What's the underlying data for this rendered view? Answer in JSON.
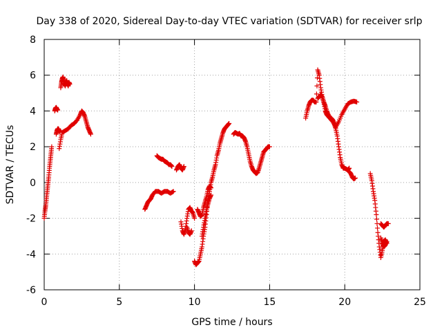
{
  "chart_data": {
    "type": "scatter",
    "title": "Day 338 of 2020, Sidereal Day-to-day VTEC variation (SDTVAR) for receiver srlp",
    "xlabel": "GPS time / hours",
    "ylabel": "SDTVAR / TECUs",
    "xlim": [
      0,
      25
    ],
    "ylim": [
      -6,
      8
    ],
    "xticks": [
      "0",
      "5",
      "10",
      "15",
      "20",
      "25"
    ],
    "yticks": [
      "-6",
      "-4",
      "-2",
      "0",
      "2",
      "4",
      "6",
      "8"
    ],
    "grid": true,
    "marker": "plus",
    "color": "#e00000",
    "segments": [
      {
        "x": [
          0.0,
          0.05,
          0.1,
          0.15,
          0.2,
          0.25,
          0.3,
          0.35,
          0.4,
          0.45,
          0.5
        ],
        "y": [
          -2.0,
          -1.6,
          -1.3,
          -0.9,
          -0.5,
          -0.1,
          0.3,
          0.8,
          1.2,
          1.6,
          2.0
        ]
      },
      {
        "x": [
          0.7,
          0.75,
          0.8,
          0.85,
          0.9
        ],
        "y": [
          4.0,
          4.15,
          4.2,
          4.1,
          4.05
        ]
      },
      {
        "x": [
          0.8,
          0.85,
          0.9,
          0.95,
          1.0,
          1.05
        ],
        "y": [
          2.7,
          2.9,
          3.0,
          3.0,
          2.9,
          2.8
        ]
      },
      {
        "x": [
          1.1,
          1.15,
          1.2,
          1.25,
          1.3,
          1.35,
          1.4,
          1.45,
          1.5,
          1.55,
          1.6,
          1.65,
          1.7
        ],
        "y": [
          5.3,
          5.6,
          5.8,
          5.9,
          5.7,
          5.5,
          5.4,
          5.6,
          5.7,
          5.5,
          5.4,
          5.6,
          5.5
        ]
      },
      {
        "x": [
          1.0,
          1.1,
          1.2,
          1.4,
          1.6,
          1.8,
          2.0,
          2.2,
          2.4,
          2.5,
          2.6,
          2.7,
          2.8,
          2.9,
          3.0,
          3.1
        ],
        "y": [
          1.9,
          2.4,
          2.8,
          2.9,
          3.0,
          3.2,
          3.3,
          3.5,
          3.8,
          4.0,
          3.9,
          3.7,
          3.4,
          3.1,
          2.9,
          2.7
        ]
      },
      {
        "x": [
          6.7,
          6.8,
          6.9,
          7.0,
          7.1,
          7.2,
          7.4,
          7.6,
          7.8,
          8.0,
          8.2,
          8.4,
          8.6
        ],
        "y": [
          -1.5,
          -1.3,
          -1.1,
          -1.0,
          -0.9,
          -0.7,
          -0.5,
          -0.5,
          -0.6,
          -0.5,
          -0.5,
          -0.6,
          -0.5
        ]
      },
      {
        "x": [
          7.5,
          7.6,
          7.7,
          7.8,
          7.9,
          8.0,
          8.1,
          8.2,
          8.3,
          8.4,
          8.5
        ],
        "y": [
          1.5,
          1.4,
          1.35,
          1.3,
          1.3,
          1.2,
          1.15,
          1.1,
          1.0,
          1.0,
          0.9
        ]
      },
      {
        "x": [
          8.8,
          8.9,
          9.0,
          9.1,
          9.2,
          9.3
        ],
        "y": [
          0.7,
          0.9,
          1.0,
          0.8,
          0.7,
          0.9
        ]
      },
      {
        "x": [
          9.1,
          9.2,
          9.3,
          9.4,
          9.5,
          9.6,
          9.7,
          9.8,
          9.9,
          10.0
        ],
        "y": [
          -2.2,
          -2.7,
          -2.9,
          -2.6,
          -2.0,
          -1.5,
          -1.4,
          -1.6,
          -1.7,
          -2.0
        ]
      },
      {
        "x": [
          9.5,
          9.6,
          9.7,
          9.8
        ],
        "y": [
          -2.5,
          -2.8,
          -2.9,
          -2.7
        ]
      },
      {
        "x": [
          10.0,
          10.1,
          10.2,
          10.3,
          10.4,
          10.5,
          10.6,
          10.7,
          10.8,
          10.9,
          11.0,
          11.1,
          11.2,
          11.3,
          11.4,
          11.5,
          11.6,
          11.7,
          11.8,
          11.9,
          12.0,
          12.1,
          12.2,
          12.3
        ],
        "y": [
          -4.4,
          -4.6,
          -4.5,
          -4.4,
          -4.0,
          -3.6,
          -3.0,
          -2.5,
          -1.8,
          -1.0,
          -0.5,
          0.0,
          0.3,
          0.7,
          1.0,
          1.5,
          1.8,
          2.2,
          2.5,
          2.8,
          3.0,
          3.1,
          3.2,
          3.3
        ]
      },
      {
        "x": [
          10.2,
          10.3,
          10.4,
          10.5,
          10.6,
          10.7,
          10.8,
          10.9,
          11.0,
          11.1
        ],
        "y": [
          -1.5,
          -1.7,
          -1.9,
          -1.8,
          -1.4,
          -1.1,
          -0.8,
          -0.4,
          -0.2,
          -0.3
        ]
      },
      {
        "x": [
          10.5,
          10.6,
          10.7,
          10.8,
          10.9,
          11.0,
          11.1
        ],
        "y": [
          -3.0,
          -2.5,
          -2.0,
          -1.5,
          -1.2,
          -0.9,
          -0.7
        ]
      },
      {
        "x": [
          12.6,
          12.7,
          12.8,
          12.9,
          13.0,
          13.1,
          13.2,
          13.3,
          13.4,
          13.5,
          13.6,
          13.7,
          13.8,
          13.9,
          14.0,
          14.1,
          14.2,
          14.3,
          14.4,
          14.5,
          14.6,
          14.7,
          14.8,
          14.9,
          15.0
        ],
        "y": [
          2.7,
          2.8,
          2.75,
          2.7,
          2.75,
          2.6,
          2.6,
          2.5,
          2.3,
          2.0,
          1.6,
          1.2,
          0.9,
          0.7,
          0.6,
          0.5,
          0.55,
          0.8,
          1.1,
          1.4,
          1.7,
          1.8,
          1.9,
          2.0,
          2.0
        ]
      },
      {
        "x": [
          17.4,
          17.5,
          17.6,
          17.7,
          17.8,
          17.9,
          18.0,
          18.1,
          18.2,
          18.3,
          18.4,
          18.5,
          18.6,
          18.7,
          18.8,
          18.9,
          19.0,
          19.1,
          19.2,
          19.3,
          19.4,
          19.5,
          19.6,
          19.7,
          19.8,
          19.9,
          20.0,
          20.1,
          20.2,
          20.3
        ],
        "y": [
          3.6,
          4.0,
          4.3,
          4.5,
          4.6,
          4.6,
          4.5,
          4.5,
          6.3,
          6.0,
          5.3,
          4.8,
          4.5,
          4.0,
          3.8,
          3.7,
          3.6,
          3.6,
          3.5,
          3.3,
          3.0,
          2.6,
          2.0,
          1.4,
          1.0,
          0.8,
          0.8,
          0.75,
          0.7,
          0.8
        ]
      },
      {
        "x": [
          18.2,
          18.3,
          18.4,
          18.5,
          18.6,
          18.7,
          18.8,
          18.9,
          19.0,
          19.2,
          19.4,
          19.6,
          19.8,
          20.0,
          20.2,
          20.4,
          20.6,
          20.8
        ],
        "y": [
          4.7,
          4.8,
          4.9,
          4.8,
          4.5,
          4.3,
          4.0,
          3.8,
          3.6,
          3.4,
          3.1,
          3.4,
          3.8,
          4.1,
          4.4,
          4.5,
          4.55,
          4.5
        ]
      },
      {
        "x": [
          20.3,
          20.4,
          20.5,
          20.6,
          20.7
        ],
        "y": [
          0.6,
          0.5,
          0.3,
          0.2,
          0.25
        ]
      },
      {
        "x": [
          21.7,
          21.8,
          21.9,
          22.0,
          22.1,
          22.2,
          22.3,
          22.4,
          22.5,
          22.6,
          22.7,
          22.8
        ],
        "y": [
          0.5,
          0.1,
          -0.5,
          -1.0,
          -1.8,
          -2.8,
          -3.6,
          -4.2,
          -3.8,
          -3.3,
          -3.2,
          -3.4
        ]
      },
      {
        "x": [
          22.4,
          22.5,
          22.6,
          22.7,
          22.8,
          22.9
        ],
        "y": [
          -2.3,
          -2.4,
          -2.5,
          -2.4,
          -2.3,
          -2.3
        ]
      },
      {
        "x": [
          22.4,
          22.5,
          22.6,
          22.7,
          22.8
        ],
        "y": [
          -3.1,
          -3.4,
          -3.6,
          -3.5,
          -3.3
        ]
      }
    ]
  }
}
